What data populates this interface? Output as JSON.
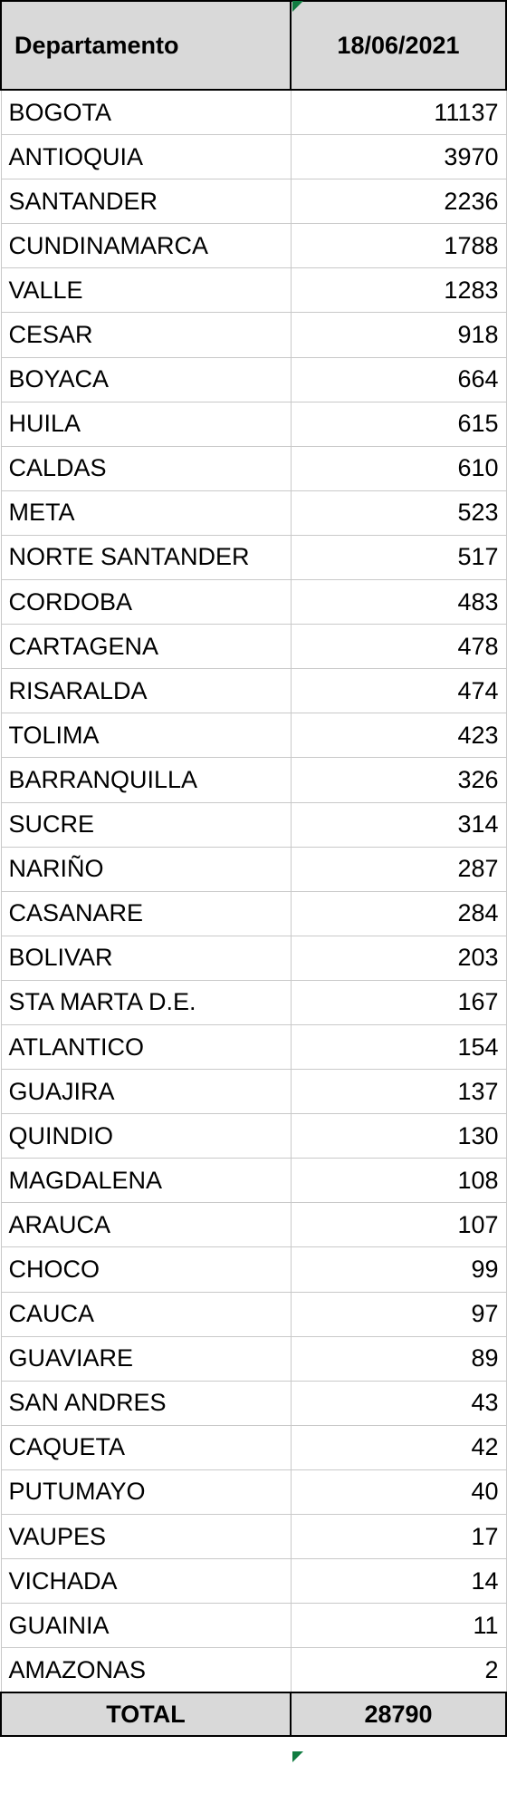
{
  "table": {
    "header": {
      "department": "Departamento",
      "date": "18/06/2021"
    },
    "rows": [
      {
        "name": "BOGOTA",
        "value": "11137"
      },
      {
        "name": "ANTIOQUIA",
        "value": "3970"
      },
      {
        "name": "SANTANDER",
        "value": "2236"
      },
      {
        "name": "CUNDINAMARCA",
        "value": "1788"
      },
      {
        "name": "VALLE",
        "value": "1283"
      },
      {
        "name": "CESAR",
        "value": "918"
      },
      {
        "name": "BOYACA",
        "value": "664"
      },
      {
        "name": "HUILA",
        "value": "615"
      },
      {
        "name": "CALDAS",
        "value": "610"
      },
      {
        "name": "META",
        "value": "523"
      },
      {
        "name": "NORTE SANTANDER",
        "value": "517"
      },
      {
        "name": "CORDOBA",
        "value": "483"
      },
      {
        "name": "CARTAGENA",
        "value": "478"
      },
      {
        "name": "RISARALDA",
        "value": "474"
      },
      {
        "name": "TOLIMA",
        "value": "423"
      },
      {
        "name": "BARRANQUILLA",
        "value": "326"
      },
      {
        "name": "SUCRE",
        "value": "314"
      },
      {
        "name": "NARIÑO",
        "value": "287"
      },
      {
        "name": "CASANARE",
        "value": "284"
      },
      {
        "name": "BOLIVAR",
        "value": "203"
      },
      {
        "name": "STA MARTA D.E.",
        "value": "167"
      },
      {
        "name": "ATLANTICO",
        "value": "154"
      },
      {
        "name": "GUAJIRA",
        "value": "137"
      },
      {
        "name": "QUINDIO",
        "value": "130"
      },
      {
        "name": "MAGDALENA",
        "value": "108"
      },
      {
        "name": "ARAUCA",
        "value": "107"
      },
      {
        "name": "CHOCO",
        "value": "99"
      },
      {
        "name": "CAUCA",
        "value": "97"
      },
      {
        "name": "GUAVIARE",
        "value": "89"
      },
      {
        "name": "SAN ANDRES",
        "value": "43"
      },
      {
        "name": "CAQUETA",
        "value": "42"
      },
      {
        "name": "PUTUMAYO",
        "value": "40"
      },
      {
        "name": "VAUPES",
        "value": "17"
      },
      {
        "name": "VICHADA",
        "value": "14"
      },
      {
        "name": "GUAINIA",
        "value": "11"
      },
      {
        "name": "AMAZONAS",
        "value": "2"
      }
    ],
    "total": {
      "label": "TOTAL",
      "value": "28790"
    }
  },
  "colors": {
    "header_bg": "#d9d9d9",
    "grid": "#c9c9c9",
    "corner_marker": "#107c41"
  }
}
